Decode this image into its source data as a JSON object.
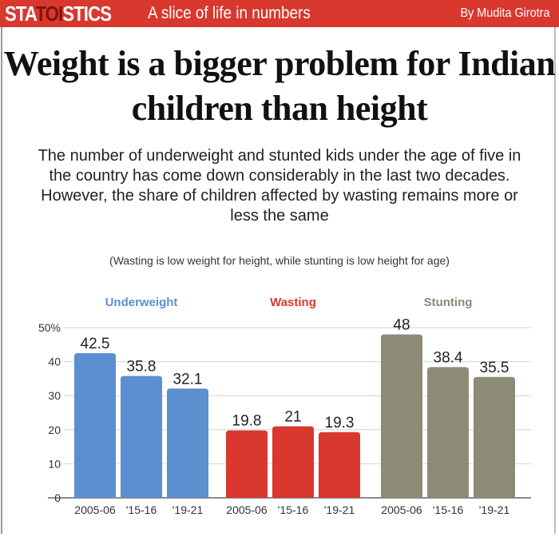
{
  "header": {
    "brand_pre": "STA",
    "brand_mid": "TOI",
    "brand_post": "STICS",
    "tagline": "A slice of life in numbers",
    "byline": "By Mudita Girotra"
  },
  "title": "Weight is a bigger problem for Indian children than height",
  "subtitle": "The number of underweight and stunted kids under the age of five in the country has come down considerably in the last two decades. However, the share of children affected by wasting remains more or less the same",
  "note": "(Wasting is low weight for height, while stunting is low height for age)",
  "chart_data": {
    "type": "bar",
    "title": "Weight is a bigger problem for Indian children than height",
    "categories": [
      "2005-06",
      "'15-16",
      "'19-21"
    ],
    "series": [
      {
        "name": "Underweight",
        "values": [
          42.5,
          35.8,
          32.1
        ],
        "color": "#5b8fcf"
      },
      {
        "name": "Wasting",
        "values": [
          19.8,
          21,
          19.3
        ],
        "color": "#d8382e"
      },
      {
        "name": "Stunting",
        "values": [
          48,
          38.4,
          35.5
        ],
        "color": "#8d8a78"
      }
    ],
    "yticks": [
      "0",
      "10",
      "20",
      "30",
      "40",
      "50%"
    ],
    "ylim": [
      0,
      50
    ],
    "grid": true,
    "xlabel": "",
    "ylabel": ""
  }
}
